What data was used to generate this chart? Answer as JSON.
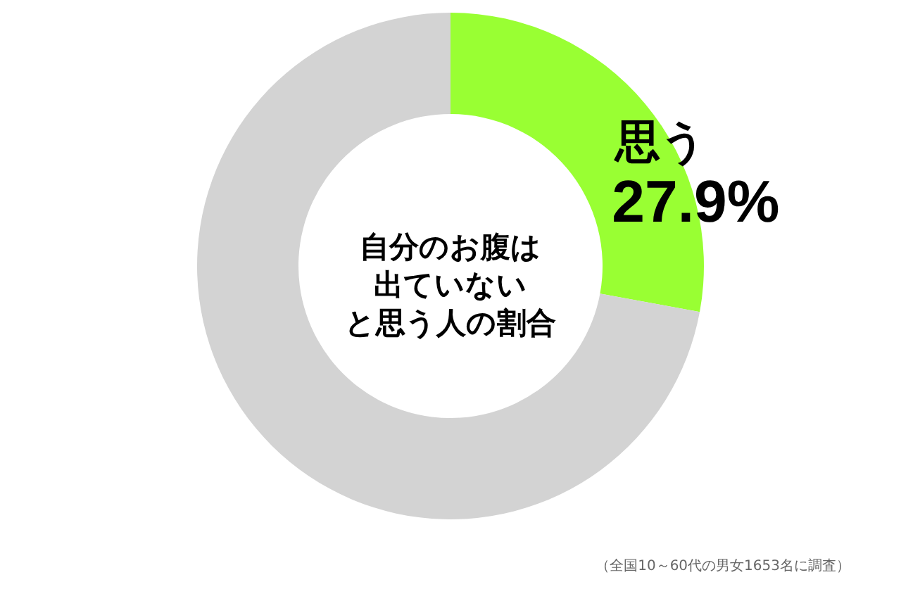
{
  "chart_data": {
    "type": "donut",
    "title": "自分のお腹は出ていないと思う人の割合",
    "categories": [
      "思う",
      null
    ],
    "values": [
      27.9,
      72.1
    ],
    "colors": [
      "#99ff33",
      "#d3d3d3"
    ],
    "value_labels": [
      "27.9%",
      null
    ],
    "annotations": [
      "（全国10～60代の男女1653名に調査）"
    ]
  }
}
